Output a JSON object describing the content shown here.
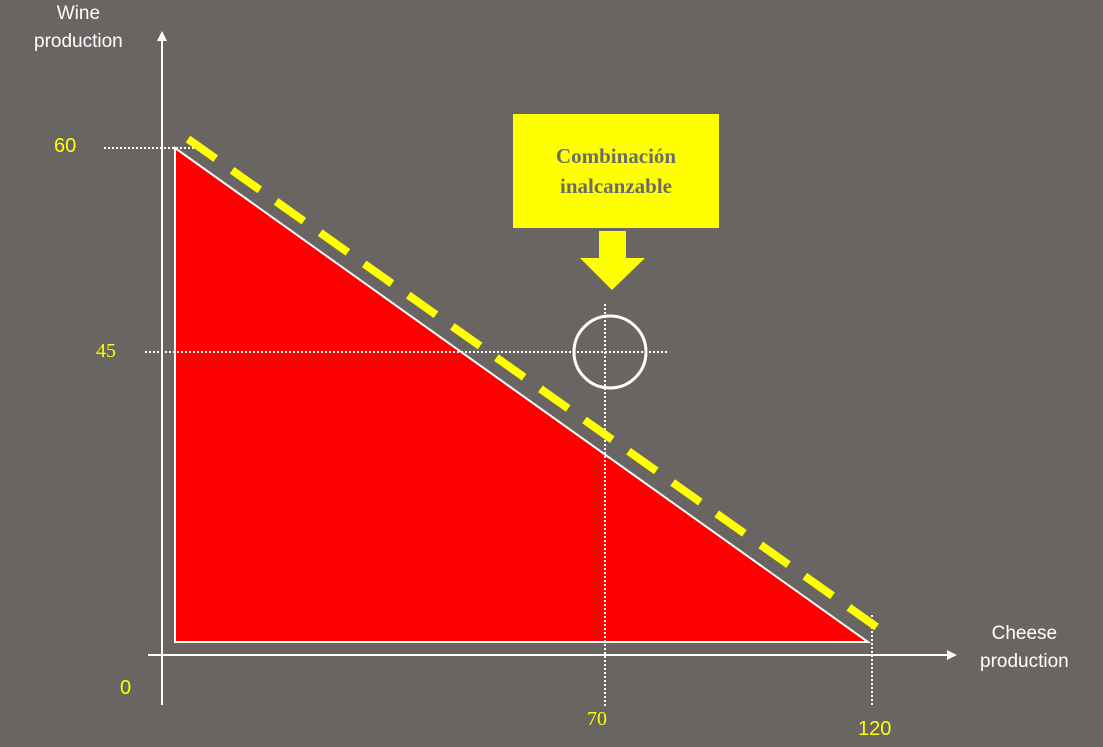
{
  "labels": {
    "y_axis_title_line1": "Wine",
    "y_axis_title_line2": "production",
    "x_axis_title_line1": "Cheese",
    "x_axis_title_line2": "production",
    "origin": "0",
    "y_tick_60": "60",
    "y_tick_45": "45",
    "x_tick_70": "70",
    "x_tick_120": "120"
  },
  "callout": {
    "line1": "Combinación",
    "line2": "inalcanzable"
  },
  "colors": {
    "background": "#686563",
    "region": "#ff0000",
    "highlight": "#ffff00",
    "axes": "#ffffff"
  }
}
